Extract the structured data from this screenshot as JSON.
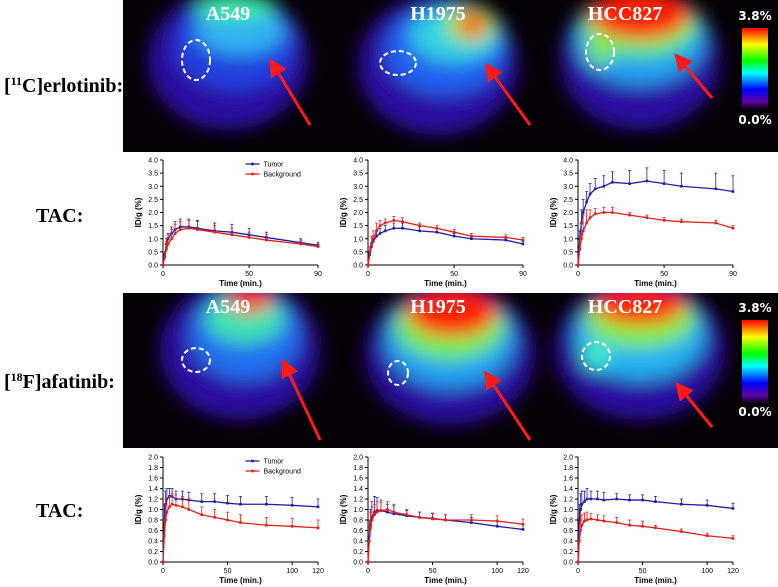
{
  "rows": [
    {
      "label_open": "[",
      "isotope": "11",
      "label_rest": "C]erlotinib:",
      "tac": "TAC:",
      "cell_lines": [
        "A549",
        "H1975",
        "HCC827"
      ],
      "colorbar": {
        "max": "3.8%",
        "min": "0.0%"
      }
    },
    {
      "label_open": "[",
      "isotope": "18",
      "label_rest": "F]afatinib:",
      "tac": "TAC:",
      "cell_lines": [
        "A549",
        "H1975",
        "HCC827"
      ],
      "colorbar": {
        "max": "3.8%",
        "min": "0.0%"
      }
    }
  ],
  "chart_data": [
    {
      "type": "line",
      "x": [
        0,
        1,
        2,
        3,
        5,
        7,
        10,
        15,
        20,
        30,
        40,
        50,
        60,
        80,
        90
      ],
      "xlim": [
        0,
        90
      ],
      "xticks": [
        0,
        50,
        90
      ],
      "ylim": [
        0,
        4
      ],
      "yticks": [
        {
          "value": 0,
          "label": "0.0"
        },
        0.5,
        {
          "value": 1,
          "label": "1.0"
        },
        1.5,
        {
          "value": 2,
          "label": "2.0"
        },
        2.5,
        {
          "value": 3,
          "label": "3.0"
        },
        3.5,
        {
          "value": 4,
          "label": "4.0"
        }
      ],
      "xlabel": "Time (min.)",
      "ylabel": "ID/g (%)",
      "legend": "top-center",
      "series": [
        {
          "name": "Tumor",
          "color": "#1f1fa8",
          "values": [
            0,
            0.4,
            0.8,
            1.0,
            1.2,
            1.35,
            1.45,
            1.45,
            1.4,
            1.3,
            1.25,
            1.15,
            1.05,
            0.85,
            0.75
          ],
          "errors": [
            0,
            0.1,
            0.2,
            0.2,
            0.25,
            0.3,
            0.3,
            0.3,
            0.3,
            0.3,
            0.3,
            0.25,
            0.2,
            0.15,
            0.1
          ]
        },
        {
          "name": "Background",
          "color": "#e3211c",
          "values": [
            0,
            0.3,
            0.6,
            0.8,
            1.0,
            1.2,
            1.35,
            1.4,
            1.35,
            1.25,
            1.15,
            1.05,
            0.95,
            0.8,
            0.7
          ],
          "errors": [
            0,
            0.2,
            0.3,
            0.35,
            0.35,
            0.35,
            0.3,
            0.3,
            0.3,
            0.25,
            0.25,
            0.2,
            0.2,
            0.15,
            0.1
          ]
        }
      ]
    },
    {
      "type": "line",
      "x": [
        0,
        1,
        2,
        3,
        5,
        7,
        10,
        15,
        20,
        30,
        40,
        50,
        60,
        80,
        90
      ],
      "xlim": [
        0,
        90
      ],
      "xticks": [
        0,
        50,
        90
      ],
      "ylim": [
        0,
        4
      ],
      "yticks": [
        {
          "value": 0,
          "label": "0.0"
        },
        0.5,
        {
          "value": 1,
          "label": "1.0"
        },
        1.5,
        {
          "value": 2,
          "label": "2.0"
        },
        2.5,
        {
          "value": 3,
          "label": "3.0"
        },
        3.5,
        {
          "value": 4,
          "label": "4.0"
        }
      ],
      "xlabel": "Time (min.)",
      "ylabel": "ID/g (%)",
      "series": [
        {
          "color": "#1f1fa8",
          "values": [
            0,
            0.4,
            0.7,
            0.9,
            1.1,
            1.2,
            1.3,
            1.4,
            1.4,
            1.3,
            1.25,
            1.1,
            1.0,
            0.95,
            0.8
          ],
          "errors": [
            0,
            0.1,
            0.15,
            0.2,
            0.2,
            0.2,
            0.2,
            0.2,
            0.2,
            0.15,
            0.15,
            0.1,
            0.1,
            0.1,
            0.1
          ]
        },
        {
          "color": "#e3211c",
          "values": [
            0,
            0.5,
            0.8,
            1.0,
            1.3,
            1.5,
            1.6,
            1.7,
            1.65,
            1.5,
            1.4,
            1.25,
            1.1,
            1.05,
            0.95
          ],
          "errors": [
            0,
            0.2,
            0.3,
            0.3,
            0.3,
            0.2,
            0.15,
            0.15,
            0.15,
            0.1,
            0.1,
            0.1,
            0.1,
            0.1,
            0.1
          ]
        }
      ]
    },
    {
      "type": "line",
      "x": [
        0,
        1,
        2,
        3,
        5,
        7,
        10,
        15,
        20,
        30,
        40,
        50,
        60,
        80,
        90
      ],
      "xlim": [
        0,
        90
      ],
      "xticks": [
        0,
        50,
        90
      ],
      "ylim": [
        0,
        4
      ],
      "yticks": [
        {
          "value": 0,
          "label": "0.0"
        },
        0.5,
        {
          "value": 1,
          "label": "1.0"
        },
        1.5,
        {
          "value": 2,
          "label": "2.0"
        },
        2.5,
        {
          "value": 3,
          "label": "3.0"
        },
        3.5,
        {
          "value": 4,
          "label": "4.0"
        }
      ],
      "xlabel": "Time (min.)",
      "ylabel": "ID/g (%)",
      "series": [
        {
          "color": "#1f1fa8",
          "values": [
            0,
            1.0,
            1.6,
            2.0,
            2.4,
            2.7,
            2.9,
            3.0,
            3.15,
            3.1,
            3.2,
            3.1,
            3.0,
            2.9,
            2.8
          ],
          "errors": [
            0,
            0.3,
            0.5,
            0.5,
            0.4,
            0.4,
            0.4,
            0.4,
            0.4,
            0.5,
            0.5,
            0.5,
            0.5,
            0.6,
            0.6
          ]
        },
        {
          "color": "#e3211c",
          "values": [
            0,
            0.6,
            1.0,
            1.3,
            1.6,
            1.8,
            1.95,
            2.0,
            2.0,
            1.9,
            1.8,
            1.7,
            1.65,
            1.6,
            1.4
          ],
          "errors": [
            0,
            0.5,
            0.6,
            0.6,
            0.5,
            0.3,
            0.2,
            0.2,
            0.2,
            0.1,
            0.1,
            0.1,
            0.1,
            0.1,
            0.1
          ]
        }
      ]
    },
    {
      "type": "line",
      "x": [
        0,
        1,
        2,
        3,
        5,
        7,
        10,
        15,
        20,
        30,
        40,
        50,
        60,
        80,
        100,
        120
      ],
      "xlim": [
        0,
        120
      ],
      "xticks": [
        0,
        50,
        100,
        120
      ],
      "ylim": [
        0,
        2
      ],
      "yticks": [
        {
          "value": 0,
          "label": "0.0"
        },
        0.2,
        0.4,
        0.6,
        0.8,
        {
          "value": 1,
          "label": "1.0"
        },
        1.2,
        1.4,
        1.6,
        1.8,
        {
          "value": 2,
          "label": "2.0"
        }
      ],
      "xlabel": "Time (min.)",
      "ylabel": "ID/g (%)",
      "legend": "top-center",
      "series": [
        {
          "name": "Tumor",
          "color": "#1f1fa8",
          "values": [
            0,
            0.8,
            1.1,
            1.2,
            1.25,
            1.25,
            1.2,
            1.2,
            1.18,
            1.15,
            1.15,
            1.12,
            1.1,
            1.1,
            1.08,
            1.05
          ],
          "errors": [
            0,
            0.3,
            0.25,
            0.2,
            0.15,
            0.15,
            0.15,
            0.15,
            0.15,
            0.15,
            0.15,
            0.15,
            0.15,
            0.15,
            0.15,
            0.15
          ]
        },
        {
          "name": "Background",
          "color": "#e3211c",
          "values": [
            0,
            0.5,
            0.8,
            0.95,
            1.05,
            1.1,
            1.08,
            1.05,
            1.0,
            0.9,
            0.85,
            0.8,
            0.75,
            0.7,
            0.68,
            0.65
          ],
          "errors": [
            0,
            0.3,
            0.3,
            0.25,
            0.2,
            0.2,
            0.2,
            0.2,
            0.2,
            0.15,
            0.15,
            0.15,
            0.15,
            0.15,
            0.15,
            0.15
          ]
        }
      ]
    },
    {
      "type": "line",
      "x": [
        0,
        1,
        2,
        3,
        5,
        7,
        10,
        15,
        20,
        30,
        40,
        50,
        60,
        80,
        100,
        120
      ],
      "xlim": [
        0,
        120
      ],
      "xticks": [
        0,
        50,
        100,
        120
      ],
      "ylim": [
        0,
        2
      ],
      "yticks": [
        {
          "value": 0,
          "label": "0.0"
        },
        0.2,
        0.4,
        0.6,
        0.8,
        {
          "value": 1,
          "label": "1.0"
        },
        1.2,
        1.4,
        1.6,
        1.8,
        {
          "value": 2,
          "label": "2.0"
        }
      ],
      "xlabel": "Time (min.)",
      "ylabel": "ID/g (%)",
      "series": [
        {
          "color": "#1f1fa8",
          "values": [
            0,
            0.5,
            0.7,
            0.85,
            0.95,
            0.98,
            0.98,
            0.95,
            0.92,
            0.88,
            0.85,
            0.83,
            0.8,
            0.75,
            0.68,
            0.62
          ],
          "errors": [
            0,
            0.3,
            0.3,
            0.3,
            0.3,
            0.25,
            0.2,
            0.15,
            0.15,
            0.1,
            0.1,
            0.1,
            0.1,
            0.1,
            0.1,
            0.1
          ]
        },
        {
          "color": "#e3211c",
          "values": [
            0,
            0.4,
            0.65,
            0.8,
            0.9,
            0.95,
            0.98,
            1.0,
            0.95,
            0.9,
            0.85,
            0.82,
            0.8,
            0.8,
            0.78,
            0.72
          ],
          "errors": [
            0,
            0.3,
            0.3,
            0.25,
            0.2,
            0.2,
            0.15,
            0.15,
            0.15,
            0.1,
            0.1,
            0.1,
            0.1,
            0.1,
            0.1,
            0.1
          ]
        }
      ]
    },
    {
      "type": "line",
      "x": [
        0,
        1,
        2,
        3,
        5,
        7,
        10,
        15,
        20,
        30,
        40,
        50,
        60,
        80,
        100,
        120
      ],
      "xlim": [
        0,
        120
      ],
      "xticks": [
        0,
        50,
        100,
        120
      ],
      "ylim": [
        0,
        2
      ],
      "yticks": [
        {
          "value": 0,
          "label": "0.0"
        },
        0.2,
        0.4,
        0.6,
        0.8,
        {
          "value": 1,
          "label": "1.0"
        },
        1.2,
        1.4,
        1.6,
        1.8,
        {
          "value": 2,
          "label": "2.0"
        }
      ],
      "xlabel": "Time (min.)",
      "ylabel": "ID/g (%)",
      "series": [
        {
          "color": "#1f1fa8",
          "values": [
            0,
            0.8,
            1.0,
            1.1,
            1.15,
            1.2,
            1.2,
            1.2,
            1.18,
            1.2,
            1.18,
            1.18,
            1.15,
            1.1,
            1.08,
            1.02
          ],
          "errors": [
            0,
            0.3,
            0.3,
            0.25,
            0.2,
            0.2,
            0.15,
            0.15,
            0.15,
            0.1,
            0.1,
            0.1,
            0.1,
            0.1,
            0.1,
            0.1
          ]
        },
        {
          "color": "#e3211c",
          "values": [
            0,
            0.4,
            0.6,
            0.7,
            0.78,
            0.8,
            0.82,
            0.8,
            0.78,
            0.75,
            0.7,
            0.68,
            0.65,
            0.58,
            0.5,
            0.45
          ],
          "errors": [
            0,
            0.3,
            0.3,
            0.2,
            0.15,
            0.15,
            0.1,
            0.1,
            0.1,
            0.1,
            0.1,
            0.1,
            0.05,
            0.05,
            0.05,
            0.05
          ]
        }
      ]
    }
  ]
}
